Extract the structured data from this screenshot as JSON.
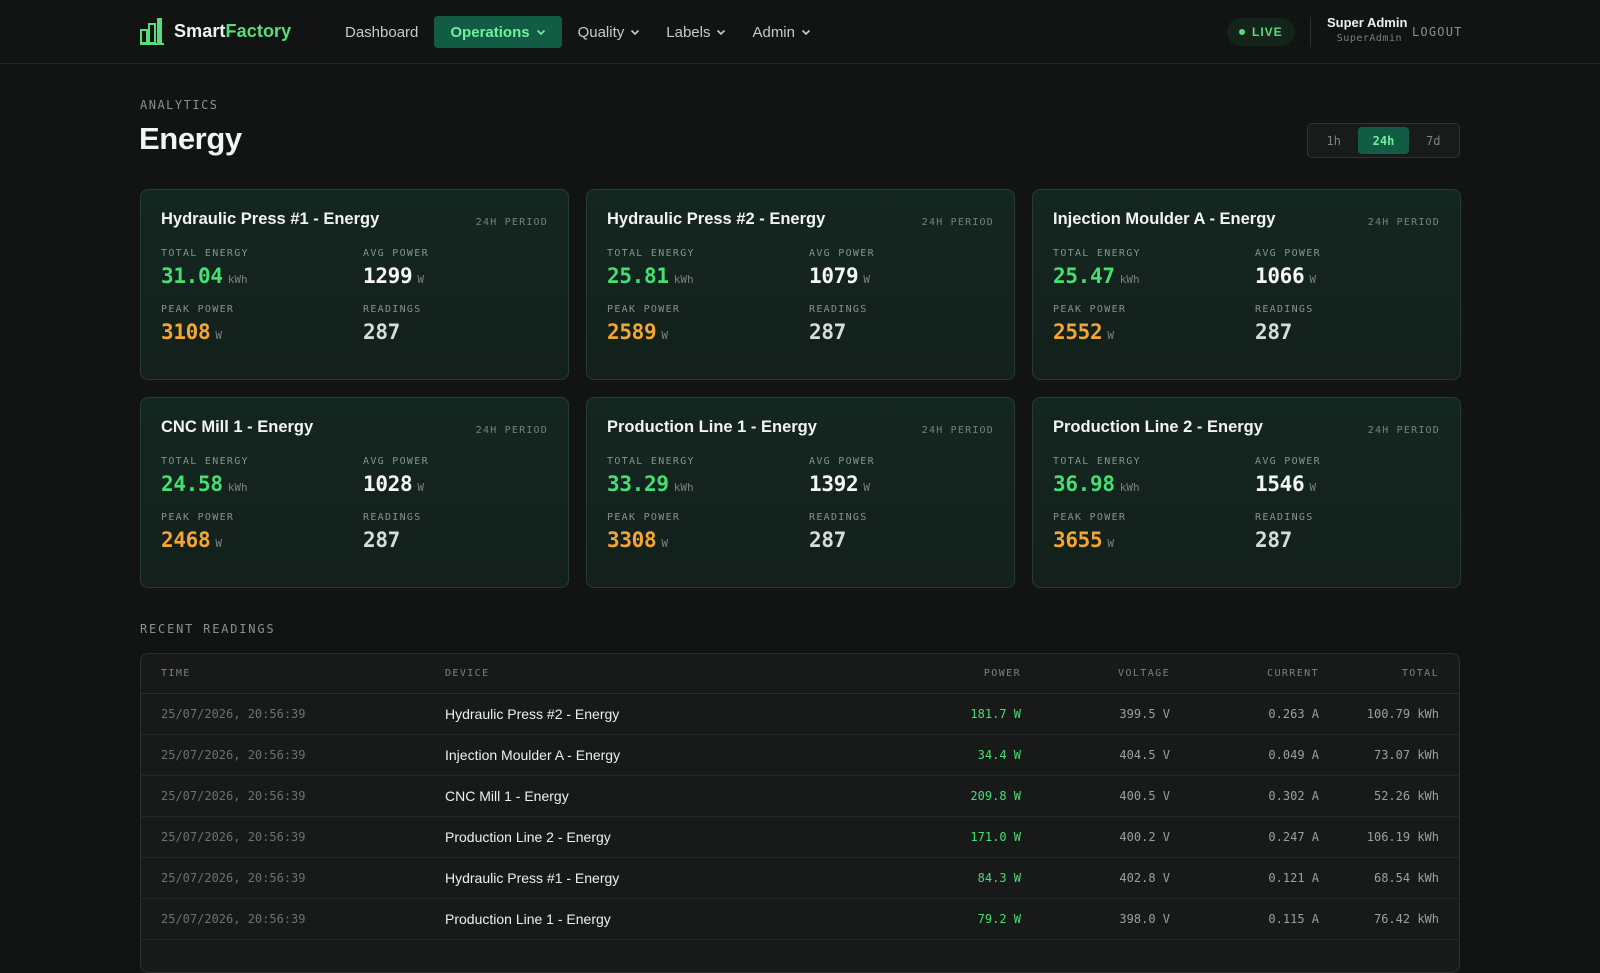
{
  "app": {
    "name_part1": "Smart",
    "name_part2": "Factory",
    "logo_icon": "bar-chart-logo-icon",
    "accent_color": "#57dd7b"
  },
  "nav": [
    {
      "label": "Dashboard",
      "dropdown": false,
      "active": false
    },
    {
      "label": "Operations",
      "dropdown": true,
      "active": true
    },
    {
      "label": "Quality",
      "dropdown": true,
      "active": false
    },
    {
      "label": "Labels",
      "dropdown": true,
      "active": false
    },
    {
      "label": "Admin",
      "dropdown": true,
      "active": false
    }
  ],
  "status": {
    "live_label": "LIVE"
  },
  "user": {
    "name": "Super Admin",
    "role": "SuperAdmin",
    "logout_label": "LOGOUT"
  },
  "header": {
    "eyebrow": "ANALYTICS",
    "title": "Energy"
  },
  "range": {
    "options": [
      "1h",
      "24h",
      "7d"
    ],
    "selected": "24h"
  },
  "labels": {
    "total_energy": "TOTAL ENERGY",
    "avg_power": "AVG POWER",
    "peak_power": "PEAK POWER",
    "readings": "READINGS",
    "kwh": "kWh",
    "w": "W"
  },
  "cards": [
    {
      "title": "Hydraulic Press #1 - Energy",
      "period": "24H PERIOD",
      "total_energy": "31.04",
      "avg_power": "1299",
      "peak_power": "3108",
      "readings": "287"
    },
    {
      "title": "Hydraulic Press #2 - Energy",
      "period": "24H PERIOD",
      "total_energy": "25.81",
      "avg_power": "1079",
      "peak_power": "2589",
      "readings": "287"
    },
    {
      "title": "Injection Moulder A - Energy",
      "period": "24H PERIOD",
      "total_energy": "25.47",
      "avg_power": "1066",
      "peak_power": "2552",
      "readings": "287"
    },
    {
      "title": "CNC Mill 1 - Energy",
      "period": "24H PERIOD",
      "total_energy": "24.58",
      "avg_power": "1028",
      "peak_power": "2468",
      "readings": "287"
    },
    {
      "title": "Production Line 1 - Energy",
      "period": "24H PERIOD",
      "total_energy": "33.29",
      "avg_power": "1392",
      "peak_power": "3308",
      "readings": "287"
    },
    {
      "title": "Production Line 2 - Energy",
      "period": "24H PERIOD",
      "total_energy": "36.98",
      "avg_power": "1546",
      "peak_power": "3655",
      "readings": "287"
    }
  ],
  "readings": {
    "section_label": "RECENT READINGS",
    "columns": [
      "TIME",
      "DEVICE",
      "POWER",
      "VOLTAGE",
      "CURRENT",
      "TOTAL"
    ],
    "rows": [
      {
        "time": "25/07/2026, 20:56:39",
        "device": "Hydraulic Press #2 - Energy",
        "power": "181.7 W",
        "voltage": "399.5 V",
        "current": "0.263 A",
        "total": "100.79 kWh"
      },
      {
        "time": "25/07/2026, 20:56:39",
        "device": "Injection Moulder A - Energy",
        "power": "34.4 W",
        "voltage": "404.5 V",
        "current": "0.049 A",
        "total": "73.07 kWh"
      },
      {
        "time": "25/07/2026, 20:56:39",
        "device": "CNC Mill 1 - Energy",
        "power": "209.8 W",
        "voltage": "400.5 V",
        "current": "0.302 A",
        "total": "52.26 kWh"
      },
      {
        "time": "25/07/2026, 20:56:39",
        "device": "Production Line 2 - Energy",
        "power": "171.0 W",
        "voltage": "400.2 V",
        "current": "0.247 A",
        "total": "106.19 kWh"
      },
      {
        "time": "25/07/2026, 20:56:39",
        "device": "Hydraulic Press #1 - Energy",
        "power": "84.3 W",
        "voltage": "402.8 V",
        "current": "0.121 A",
        "total": "68.54 kWh"
      },
      {
        "time": "25/07/2026, 20:56:39",
        "device": "Production Line 1 - Energy",
        "power": "79.2 W",
        "voltage": "398.0 V",
        "current": "0.115 A",
        "total": "76.42 kWh"
      }
    ]
  }
}
